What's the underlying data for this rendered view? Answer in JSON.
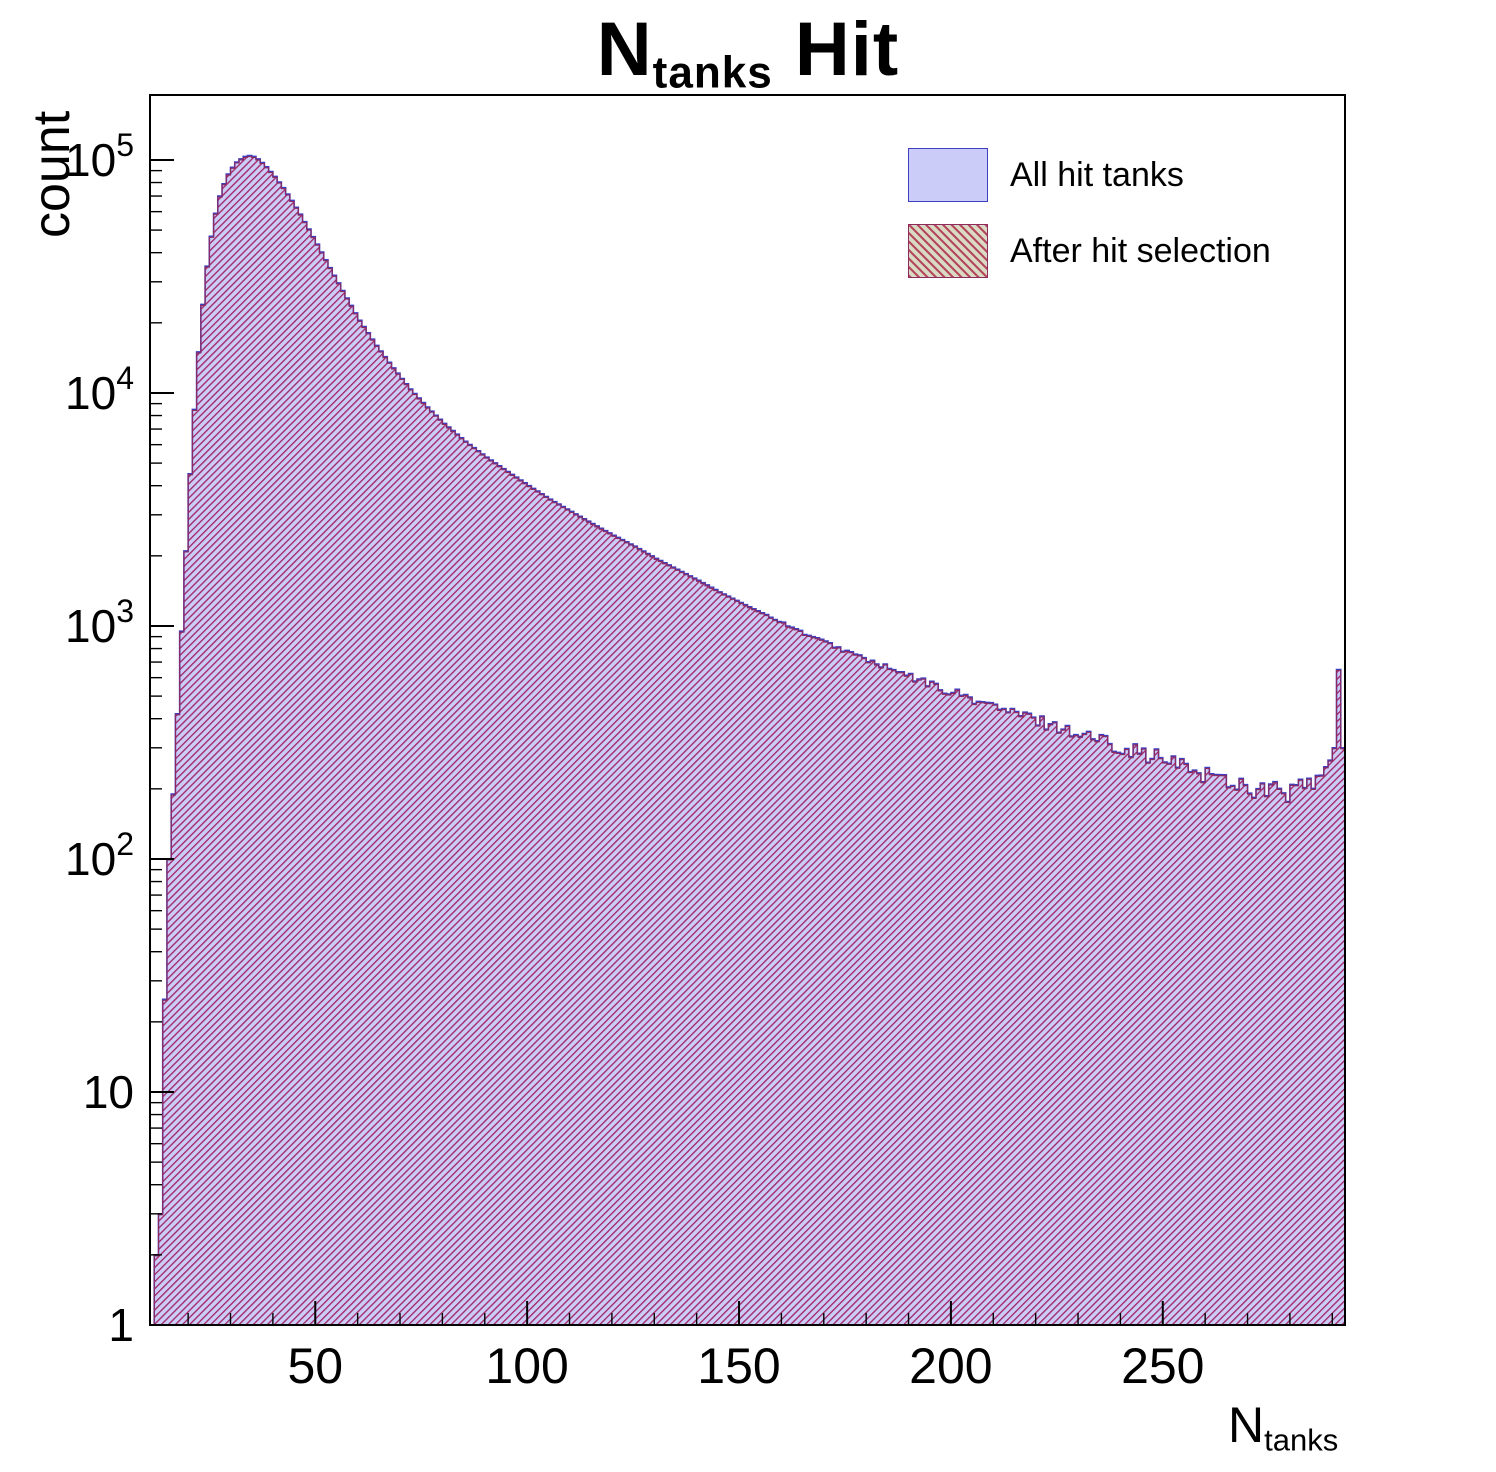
{
  "title": {
    "pre": "N",
    "sub": "tanks",
    "post": " Hit"
  },
  "y_axis": {
    "label": "count"
  },
  "x_axis": {
    "label_pre": "N",
    "label_sub": "tanks"
  },
  "legend": {
    "items": [
      {
        "label": "All hit tanks",
        "swatch": "solid",
        "fill": "#ccccf8",
        "border": "#3f3fc2"
      },
      {
        "label": "After hit selection",
        "swatch": "hatch",
        "base": "#d9d9c4",
        "hatch_color": "#b5485f",
        "border": "#8d2a5e"
      }
    ]
  },
  "colors": {
    "all_fill": "#ccccf8",
    "all_stroke": "#3f3fc2",
    "sel_hatch": "#a02864",
    "sel_stroke": "#8d2a5e",
    "frame": "#000000"
  },
  "chart_data": {
    "type": "bar",
    "title": "N_tanks Hit",
    "xlabel": "N_tanks",
    "ylabel": "count",
    "x_range": [
      11,
      293
    ],
    "y_scale": "log",
    "y_range": [
      1,
      190000
    ],
    "grid": false,
    "legend_position": "top-right",
    "bin_width": 1,
    "bins_start": 12,
    "bins_end": 292,
    "x_major_ticks": [
      50,
      100,
      150,
      200,
      250
    ],
    "x_minor_step": 10,
    "y_major_ticks": [
      1,
      10,
      100,
      1000,
      10000,
      100000
    ],
    "noise": {
      "start_x": 150,
      "slope": 0.0009,
      "max": 0.13
    },
    "series": [
      {
        "name": "All hit tanks",
        "anchors": [
          [
            12,
            2
          ],
          [
            13,
            3
          ],
          [
            14,
            25
          ],
          [
            15,
            100
          ],
          [
            16,
            190
          ],
          [
            17,
            420
          ],
          [
            18,
            950
          ],
          [
            19,
            2100
          ],
          [
            20,
            4500
          ],
          [
            21,
            8500
          ],
          [
            22,
            15000
          ],
          [
            23,
            24000
          ],
          [
            24,
            35000
          ],
          [
            25,
            47000
          ],
          [
            26,
            59000
          ],
          [
            27,
            70000
          ],
          [
            28,
            79000
          ],
          [
            29,
            87000
          ],
          [
            30,
            93000
          ],
          [
            31,
            98000
          ],
          [
            32,
            101000
          ],
          [
            33,
            103500
          ],
          [
            34,
            104500
          ],
          [
            35,
            103500
          ],
          [
            36,
            101000
          ],
          [
            37,
            97500
          ],
          [
            38,
            93500
          ],
          [
            40,
            85000
          ],
          [
            42,
            76000
          ],
          [
            44,
            67000
          ],
          [
            46,
            58500
          ],
          [
            48,
            50500
          ],
          [
            50,
            43500
          ],
          [
            53,
            34500
          ],
          [
            56,
            27500
          ],
          [
            60,
            20500
          ],
          [
            64,
            16000
          ],
          [
            68,
            12800
          ],
          [
            72,
            10400
          ],
          [
            76,
            8700
          ],
          [
            80,
            7400
          ],
          [
            85,
            6200
          ],
          [
            90,
            5300
          ],
          [
            95,
            4600
          ],
          [
            100,
            4000
          ],
          [
            105,
            3500
          ],
          [
            110,
            3100
          ],
          [
            115,
            2750
          ],
          [
            120,
            2450
          ],
          [
            125,
            2200
          ],
          [
            130,
            1950
          ],
          [
            135,
            1750
          ],
          [
            140,
            1570
          ],
          [
            145,
            1400
          ],
          [
            150,
            1260
          ],
          [
            155,
            1140
          ],
          [
            160,
            1030
          ],
          [
            165,
            930
          ],
          [
            170,
            850
          ],
          [
            175,
            780
          ],
          [
            180,
            715
          ],
          [
            185,
            655
          ],
          [
            190,
            605
          ],
          [
            195,
            560
          ],
          [
            200,
            520
          ],
          [
            205,
            485
          ],
          [
            210,
            450
          ],
          [
            215,
            420
          ],
          [
            220,
            395
          ],
          [
            225,
            370
          ],
          [
            230,
            345
          ],
          [
            235,
            325
          ],
          [
            240,
            305
          ],
          [
            245,
            285
          ],
          [
            250,
            265
          ],
          [
            255,
            248
          ],
          [
            260,
            232
          ],
          [
            265,
            218
          ],
          [
            270,
            205
          ],
          [
            275,
            196
          ],
          [
            280,
            195
          ],
          [
            285,
            210
          ],
          [
            288,
            235
          ],
          [
            290,
            300
          ],
          [
            291,
            650
          ],
          [
            292,
            300
          ]
        ]
      },
      {
        "name": "After hit selection",
        "relative_scale": 0.99
      }
    ]
  }
}
